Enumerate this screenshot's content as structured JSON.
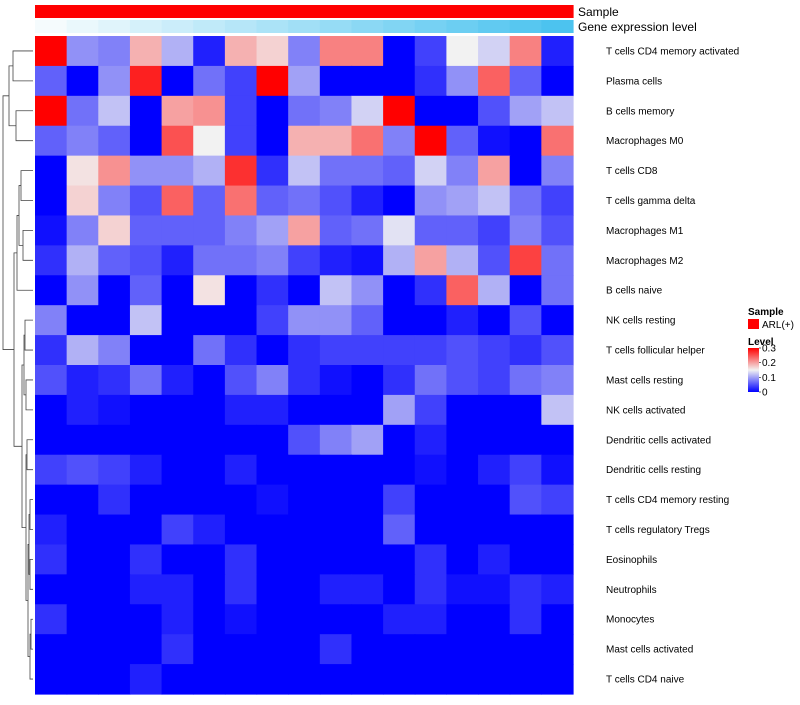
{
  "annotation_labels": {
    "sample": "Sample",
    "gene_expression": "Gene expression level"
  },
  "legend": {
    "sample_title": "Sample",
    "sample_item": "ARL(+)",
    "sample_color": "#ff0000",
    "level_title": "Level",
    "level_ticks": [
      "0.3",
      "0.2",
      "0.1",
      "0"
    ],
    "level_tick_values": [
      0.3,
      0.2,
      0.1,
      0
    ]
  },
  "colors": {
    "low": "#0000ff",
    "mid": "#f2f2f2",
    "high": "#ff0000",
    "gene_low": "#f5fbfd",
    "gene_high": "#4cc3ef"
  },
  "chart_data": {
    "type": "heatmap",
    "scale": {
      "min": 0,
      "mid": 0.15,
      "max": 0.3
    },
    "rows": [
      "T cells CD4 memory activated",
      "Plasma cells",
      "B cells memory",
      "Macrophages M0",
      "T cells CD8",
      "T cells gamma delta",
      "Macrophages M1",
      "Macrophages M2",
      "B cells naive",
      "NK cells resting",
      "T cells follicular helper",
      "Mast cells resting",
      "NK cells activated",
      "Dendritic cells activated",
      "Dendritic cells resting",
      "T cells CD4 memory resting",
      "T cells regulatory  Tregs",
      "Eosinophils",
      "Neutrophils",
      "Monocytes",
      "Mast cells activated",
      "T cells CD4 naive"
    ],
    "values": [
      [
        0.3,
        0.09,
        0.08,
        0.19,
        0.11,
        0.02,
        0.19,
        0.17,
        0.08,
        0.22,
        0.22,
        0.0,
        0.04,
        0.15,
        0.13,
        0.22,
        0.02
      ],
      [
        0.06,
        0.0,
        0.09,
        0.28,
        0.0,
        0.07,
        0.04,
        0.3,
        0.1,
        0.0,
        0.0,
        0.0,
        0.03,
        0.09,
        0.24,
        0.06,
        0.0
      ],
      [
        0.3,
        0.07,
        0.12,
        0.0,
        0.2,
        0.21,
        0.04,
        0.0,
        0.07,
        0.08,
        0.13,
        0.3,
        0.0,
        0.0,
        0.05,
        0.1,
        0.12
      ],
      [
        0.06,
        0.08,
        0.06,
        0.0,
        0.25,
        0.15,
        0.04,
        0.0,
        0.19,
        0.19,
        0.23,
        0.08,
        0.3,
        0.06,
        0.01,
        0.0,
        0.23
      ],
      [
        0.0,
        0.16,
        0.21,
        0.09,
        0.09,
        0.11,
        0.27,
        0.03,
        0.12,
        0.07,
        0.07,
        0.06,
        0.13,
        0.08,
        0.2,
        0.0,
        0.08
      ],
      [
        0.0,
        0.17,
        0.08,
        0.05,
        0.24,
        0.06,
        0.23,
        0.06,
        0.07,
        0.05,
        0.02,
        0.0,
        0.09,
        0.1,
        0.12,
        0.07,
        0.04
      ],
      [
        0.01,
        0.08,
        0.17,
        0.06,
        0.06,
        0.06,
        0.08,
        0.1,
        0.2,
        0.06,
        0.07,
        0.14,
        0.06,
        0.06,
        0.04,
        0.08,
        0.05
      ],
      [
        0.03,
        0.11,
        0.06,
        0.05,
        0.02,
        0.07,
        0.07,
        0.08,
        0.04,
        0.02,
        0.01,
        0.11,
        0.2,
        0.11,
        0.05,
        0.26,
        0.07
      ],
      [
        0.0,
        0.09,
        0.0,
        0.06,
        0.0,
        0.16,
        0.0,
        0.03,
        0.0,
        0.12,
        0.09,
        0.0,
        0.03,
        0.24,
        0.11,
        0.0,
        0.07
      ],
      [
        0.08,
        0.0,
        0.0,
        0.12,
        0.0,
        0.0,
        0.0,
        0.04,
        0.09,
        0.09,
        0.06,
        0.0,
        0.0,
        0.02,
        0.0,
        0.05,
        0.0
      ],
      [
        0.03,
        0.11,
        0.08,
        0.0,
        0.0,
        0.07,
        0.03,
        0.0,
        0.03,
        0.04,
        0.04,
        0.04,
        0.04,
        0.05,
        0.04,
        0.03,
        0.05
      ],
      [
        0.05,
        0.02,
        0.03,
        0.07,
        0.02,
        0.0,
        0.05,
        0.08,
        0.03,
        0.01,
        0.0,
        0.03,
        0.07,
        0.05,
        0.04,
        0.07,
        0.08
      ],
      [
        0.0,
        0.02,
        0.01,
        0.0,
        0.0,
        0.0,
        0.02,
        0.02,
        0.0,
        0.0,
        0.0,
        0.1,
        0.04,
        0.0,
        0.0,
        0.0,
        0.12
      ],
      [
        0.0,
        0.0,
        0.0,
        0.0,
        0.0,
        0.0,
        0.0,
        0.0,
        0.05,
        0.08,
        0.1,
        0.0,
        0.02,
        0.0,
        0.0,
        0.0,
        0.0
      ],
      [
        0.04,
        0.05,
        0.04,
        0.02,
        0.0,
        0.0,
        0.02,
        0.0,
        0.0,
        0.0,
        0.0,
        0.0,
        0.01,
        0.0,
        0.02,
        0.04,
        0.01
      ],
      [
        0.0,
        0.0,
        0.03,
        0.0,
        0.0,
        0.0,
        0.0,
        0.01,
        0.0,
        0.0,
        0.0,
        0.04,
        0.0,
        0.0,
        0.0,
        0.05,
        0.04
      ],
      [
        0.02,
        0.0,
        0.0,
        0.0,
        0.04,
        0.02,
        0.0,
        0.0,
        0.0,
        0.0,
        0.0,
        0.06,
        0.0,
        0.0,
        0.0,
        0.0,
        0.0
      ],
      [
        0.03,
        0.0,
        0.0,
        0.03,
        0.0,
        0.0,
        0.03,
        0.0,
        0.0,
        0.0,
        0.0,
        0.0,
        0.03,
        0.0,
        0.02,
        0.0,
        0.0
      ],
      [
        0.0,
        0.0,
        0.0,
        0.02,
        0.02,
        0.0,
        0.03,
        0.0,
        0.0,
        0.02,
        0.02,
        0.0,
        0.03,
        0.01,
        0.01,
        0.03,
        0.02
      ],
      [
        0.03,
        0.0,
        0.0,
        0.0,
        0.02,
        0.0,
        0.01,
        0.0,
        0.0,
        0.0,
        0.0,
        0.02,
        0.02,
        0.0,
        0.0,
        0.03,
        0.0
      ],
      [
        0.0,
        0.0,
        0.0,
        0.0,
        0.03,
        0.0,
        0.0,
        0.0,
        0.0,
        0.03,
        0.0,
        0.0,
        0.0,
        0.0,
        0.0,
        0.0,
        0.0
      ],
      [
        0.0,
        0.0,
        0.0,
        0.02,
        0.0,
        0.0,
        0.0,
        0.0,
        0.0,
        0.0,
        0.0,
        0.0,
        0.0,
        0.0,
        0.0,
        0.0,
        0.0
      ]
    ],
    "sample_annotation": [
      "ARL(+)",
      "ARL(+)",
      "ARL(+)",
      "ARL(+)",
      "ARL(+)",
      "ARL(+)",
      "ARL(+)",
      "ARL(+)",
      "ARL(+)",
      "ARL(+)",
      "ARL(+)",
      "ARL(+)",
      "ARL(+)",
      "ARL(+)",
      "ARL(+)",
      "ARL(+)",
      "ARL(+)"
    ],
    "gene_expression_annotation": [
      0.02,
      0.06,
      0.1,
      0.14,
      0.18,
      0.22,
      0.26,
      0.3,
      0.34,
      0.38,
      0.42,
      0.46,
      0.5,
      0.54,
      0.58,
      0.62,
      0.66
    ]
  }
}
